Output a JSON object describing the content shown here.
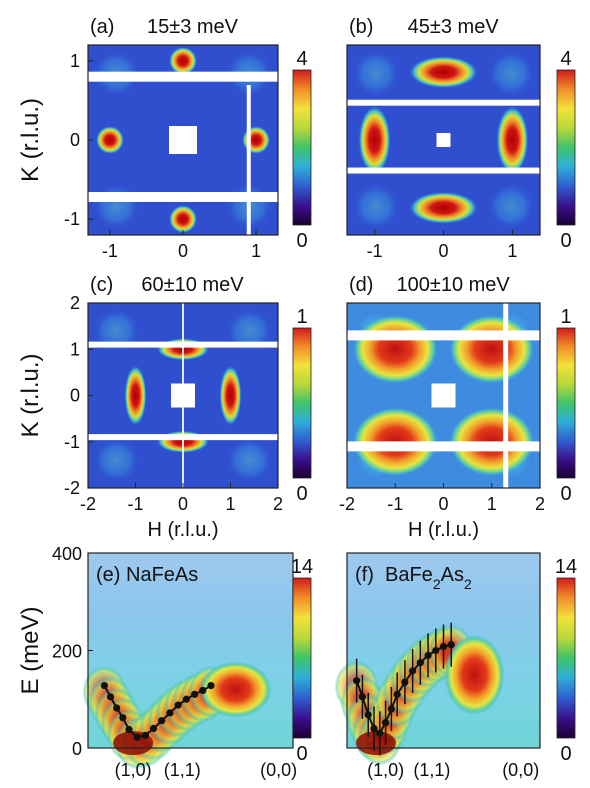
{
  "chart_data": [
    {
      "type": "heatmap",
      "panel_label": "(a)",
      "title": "15±3 meV",
      "ylabel": "K (r.l.u.)",
      "xlabel": "",
      "xlim": [
        -1.3,
        1.3
      ],
      "ylim": [
        -1.2,
        1.2
      ],
      "xticks": [
        -1,
        0,
        1
      ],
      "yticks": [
        -1,
        0,
        1
      ],
      "colorbar": {
        "min": 0,
        "max": 4,
        "ticks": [
          4,
          0
        ]
      },
      "intensity_spots": [
        {
          "h": -1,
          "k": 0,
          "value": 4
        },
        {
          "h": 1,
          "k": 0,
          "value": 4
        },
        {
          "h": 0,
          "k": 1,
          "value": 4
        },
        {
          "h": 0,
          "k": -1,
          "value": 3.5
        }
      ]
    },
    {
      "type": "heatmap",
      "panel_label": "(b)",
      "title": "45±3 meV",
      "ylabel": "",
      "xlabel": "",
      "xlim": [
        -1.4,
        1.4
      ],
      "ylim": [
        -1.4,
        1.4
      ],
      "xticks": [
        -1,
        0,
        1
      ],
      "yticks": [],
      "colorbar": {
        "min": 0,
        "max": 4,
        "ticks": [
          4,
          0
        ]
      },
      "intensity_spots": [
        {
          "h": -1,
          "k": 0,
          "value": 4
        },
        {
          "h": 1,
          "k": 0,
          "value": 4
        },
        {
          "h": 0,
          "k": 1,
          "value": 4
        },
        {
          "h": 0,
          "k": -1,
          "value": 4
        }
      ]
    },
    {
      "type": "heatmap",
      "panel_label": "(c)",
      "title": "60±10 meV",
      "ylabel": "K (r.l.u.)",
      "xlabel": "H (r.l.u.)",
      "xlim": [
        -2,
        2
      ],
      "ylim": [
        -2,
        2
      ],
      "xticks": [
        -2,
        -1,
        0,
        1,
        2
      ],
      "yticks": [
        -2,
        -1,
        0,
        1,
        2
      ],
      "colorbar": {
        "min": 0,
        "max": 1,
        "ticks": [
          1,
          0
        ]
      },
      "intensity_spots": [
        {
          "h": -1,
          "k": 0,
          "value": 1
        },
        {
          "h": 1,
          "k": 0,
          "value": 1
        },
        {
          "h": 0,
          "k": 1,
          "value": 0.8
        },
        {
          "h": 0,
          "k": -1,
          "value": 0.8
        }
      ]
    },
    {
      "type": "heatmap",
      "panel_label": "(d)",
      "title": "100±10 meV",
      "ylabel": "",
      "xlabel": "H (r.l.u.)",
      "xlim": [
        -2,
        2
      ],
      "ylim": [
        -2,
        2
      ],
      "xticks": [
        -2,
        -1,
        0,
        1,
        2
      ],
      "yticks": [],
      "colorbar": {
        "min": 0,
        "max": 1,
        "ticks": [
          1,
          0
        ]
      },
      "intensity_spots": [
        {
          "h": -1,
          "k": 1,
          "value": 1
        },
        {
          "h": 1,
          "k": 1,
          "value": 1
        },
        {
          "h": -1,
          "k": -1,
          "value": 1
        },
        {
          "h": 1,
          "k": -1,
          "value": 1
        }
      ]
    },
    {
      "type": "heatmap",
      "panel_label": "(e)",
      "title": "NaFeAs",
      "ylabel": "E (meV)",
      "xlabel": "",
      "ylim": [
        0,
        400
      ],
      "yticks": [
        0,
        200,
        400
      ],
      "xtick_labels": [
        "(1,0)",
        "(1,1)",
        "(0,0)"
      ],
      "colorbar": {
        "min": 0,
        "max": 14,
        "ticks": [
          14,
          0
        ]
      },
      "dispersion_points": [
        {
          "x": 0.08,
          "y": 128
        },
        {
          "x": 0.11,
          "y": 105
        },
        {
          "x": 0.14,
          "y": 82
        },
        {
          "x": 0.17,
          "y": 62
        },
        {
          "x": 0.2,
          "y": 38
        },
        {
          "x": 0.24,
          "y": 22
        },
        {
          "x": 0.28,
          "y": 26
        },
        {
          "x": 0.32,
          "y": 40
        },
        {
          "x": 0.36,
          "y": 56
        },
        {
          "x": 0.4,
          "y": 72
        },
        {
          "x": 0.44,
          "y": 88
        },
        {
          "x": 0.48,
          "y": 100
        },
        {
          "x": 0.52,
          "y": 110
        },
        {
          "x": 0.56,
          "y": 118
        },
        {
          "x": 0.6,
          "y": 128
        }
      ]
    },
    {
      "type": "heatmap",
      "panel_label": "(f)",
      "title": "BaFe2As2",
      "title_parts": [
        "BaFe",
        "2",
        "As",
        "2"
      ],
      "ylabel": "",
      "xlabel": "",
      "ylim": [
        0,
        400
      ],
      "yticks": [],
      "xtick_labels": [
        "(1,0)",
        "(1,1)",
        "(0,0)"
      ],
      "colorbar": {
        "min": 0,
        "max": 14,
        "ticks": [
          14,
          0
        ]
      },
      "dispersion_points": [
        {
          "x": 0.05,
          "y": 138
        },
        {
          "x": 0.08,
          "y": 105
        },
        {
          "x": 0.11,
          "y": 68
        },
        {
          "x": 0.14,
          "y": 40
        },
        {
          "x": 0.17,
          "y": 30
        },
        {
          "x": 0.2,
          "y": 52
        },
        {
          "x": 0.23,
          "y": 80
        },
        {
          "x": 0.26,
          "y": 110
        },
        {
          "x": 0.3,
          "y": 135
        },
        {
          "x": 0.34,
          "y": 158
        },
        {
          "x": 0.38,
          "y": 175
        },
        {
          "x": 0.42,
          "y": 190
        },
        {
          "x": 0.46,
          "y": 200
        },
        {
          "x": 0.5,
          "y": 208
        },
        {
          "x": 0.54,
          "y": 212
        }
      ]
    }
  ]
}
